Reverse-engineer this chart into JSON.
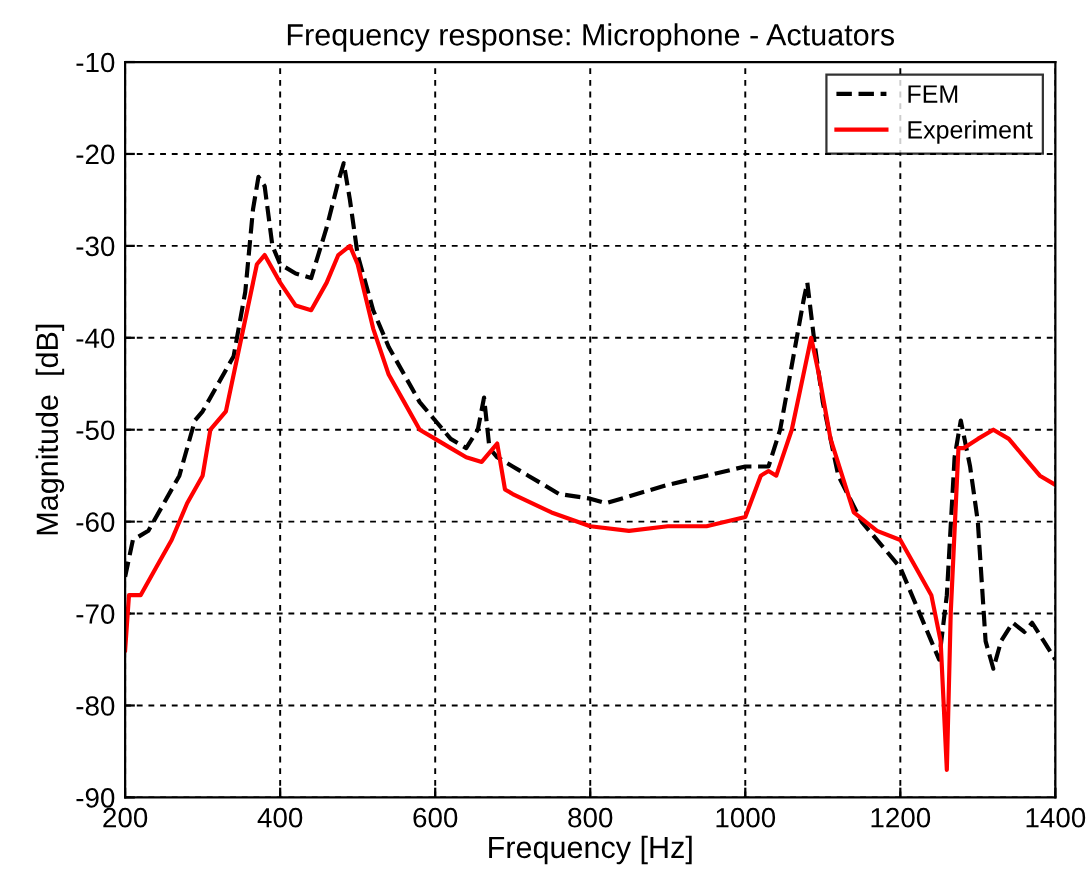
{
  "chart_data": {
    "type": "line",
    "title": "Frequency response: Microphone - Actuators",
    "xlabel": "Frequency [Hz]",
    "ylabel": "Magnitude  [dB]",
    "xlim": [
      200,
      1400
    ],
    "xticks": [
      200,
      400,
      600,
      800,
      1000,
      1200,
      1400
    ],
    "ylim": [
      -90,
      -10
    ],
    "yticks": [
      -90,
      -80,
      -70,
      -60,
      -50,
      -40,
      -30,
      -20,
      -10
    ],
    "grid": true,
    "legend": "top right",
    "series": [
      {
        "name": "FEM",
        "color": "#000000",
        "line_style": "dashed",
        "x": [
          200,
          210,
          230,
          250,
          270,
          290,
          300,
          320,
          340,
          355,
          365,
          372,
          380,
          390,
          400,
          420,
          440,
          460,
          475,
          482,
          490,
          500,
          520,
          540,
          560,
          580,
          600,
          620,
          640,
          655,
          663,
          670,
          680,
          700,
          720,
          760,
          800,
          820,
          860,
          900,
          950,
          1000,
          1030,
          1045,
          1060,
          1075,
          1080,
          1090,
          1100,
          1120,
          1150,
          1180,
          1200,
          1220,
          1240,
          1250,
          1260,
          1270,
          1278,
          1290,
          1300,
          1310,
          1320,
          1330,
          1345,
          1360,
          1370,
          1385,
          1400
        ],
        "values": [
          -66,
          -62,
          -61,
          -58,
          -55,
          -49,
          -48,
          -45,
          -42,
          -35,
          -26,
          -22.5,
          -23.5,
          -30,
          -32,
          -33,
          -33.5,
          -28,
          -23,
          -21,
          -25,
          -31,
          -37,
          -41,
          -44,
          -47,
          -49,
          -51,
          -52,
          -50,
          -46.5,
          -52,
          -53,
          -54,
          -55,
          -57,
          -57.5,
          -58,
          -57,
          -56,
          -55,
          -54,
          -54,
          -50,
          -43,
          -36,
          -34,
          -41,
          -47,
          -55,
          -60,
          -63,
          -65,
          -69,
          -73,
          -75,
          -68,
          -53,
          -49,
          -54,
          -60,
          -73,
          -76,
          -73,
          -71,
          -72,
          -71,
          -73,
          -75
        ]
      },
      {
        "name": "Experiment",
        "color": "#ff0000",
        "line_style": "solid",
        "x": [
          200,
          205,
          220,
          240,
          260,
          280,
          300,
          310,
          330,
          350,
          370,
          380,
          400,
          420,
          440,
          460,
          475,
          490,
          500,
          520,
          540,
          560,
          580,
          600,
          620,
          640,
          660,
          675,
          680,
          690,
          700,
          750,
          800,
          850,
          900,
          950,
          1000,
          1020,
          1030,
          1040,
          1060,
          1075,
          1085,
          1095,
          1110,
          1140,
          1170,
          1200,
          1220,
          1240,
          1252,
          1260,
          1265,
          1275,
          1282,
          1300,
          1320,
          1340,
          1360,
          1380,
          1400
        ],
        "values": [
          -74,
          -68,
          -68,
          -65,
          -62,
          -58,
          -55,
          -50,
          -48,
          -40,
          -32,
          -31,
          -34,
          -36.5,
          -37,
          -34,
          -31,
          -30,
          -32,
          -39,
          -44,
          -47,
          -50,
          -51,
          -52,
          -53,
          -53.5,
          -52,
          -51.5,
          -56.5,
          -57,
          -59,
          -60.5,
          -61,
          -60.5,
          -60.5,
          -59.5,
          -55,
          -54.5,
          -55,
          -50,
          -44,
          -40,
          -44,
          -51,
          -59,
          -61,
          -62,
          -65,
          -68,
          -73,
          -87,
          -70,
          -52,
          -52,
          -51,
          -50,
          -51,
          -53,
          -55,
          -56
        ]
      }
    ]
  }
}
